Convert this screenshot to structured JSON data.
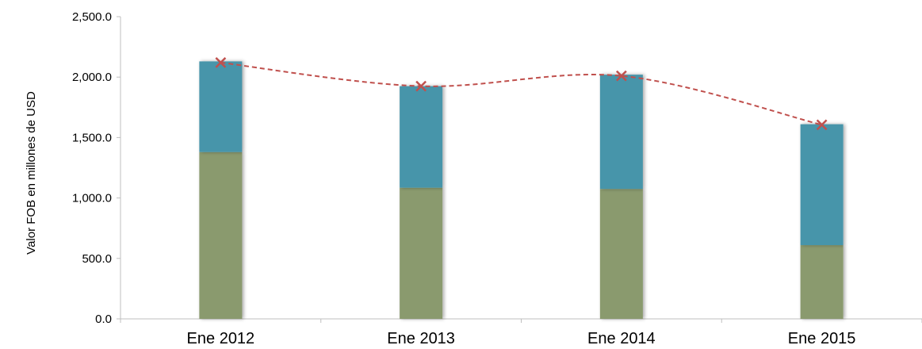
{
  "chart_data": {
    "type": "bar",
    "stacked": true,
    "categories": [
      "Ene  2012",
      "Ene  2013",
      "Ene  2014",
      "Ene  2015"
    ],
    "series": [
      {
        "kind": "bar",
        "color": "#8a9a6e",
        "values": [
          1380,
          1085,
          1075,
          610
        ]
      },
      {
        "kind": "bar",
        "color": "#4795aa",
        "values": [
          750,
          840,
          945,
          1000
        ]
      },
      {
        "kind": "line",
        "color": "#c0504d",
        "line_style": "dashed",
        "marker": "x",
        "values": [
          2120,
          1925,
          2010,
          1605
        ]
      }
    ],
    "ylabel": "Valor FOB  en millones de USD",
    "ylim": [
      0,
      2500
    ],
    "yticks": [
      "0.0",
      "500.0",
      "1,000.0",
      "1,500.0",
      "2,000.0",
      "2,500.0"
    ],
    "grid": false,
    "legend": "none"
  }
}
